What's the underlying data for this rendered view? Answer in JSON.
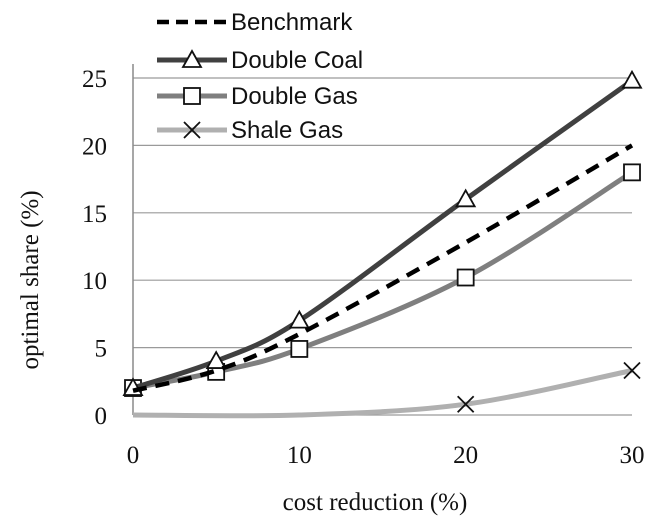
{
  "chart_data": {
    "type": "line",
    "title": "",
    "xlabel": "cost reduction (%)",
    "ylabel": "optimal share (%)",
    "xlim": [
      0,
      30
    ],
    "ylim": [
      0,
      25
    ],
    "xticks": [
      0,
      10,
      20,
      30
    ],
    "yticks": [
      0,
      5,
      10,
      15,
      20,
      25
    ],
    "grid": "horizontal",
    "legend_position": "top-left",
    "series": [
      {
        "name": "Benchmark",
        "color": "#000000",
        "style": "dashed",
        "marker": "none",
        "x": [
          0,
          5,
          10,
          20,
          30
        ],
        "y": [
          1.8,
          3.3,
          6.0,
          12.8,
          20.0
        ]
      },
      {
        "name": "Double Coal",
        "color": "#404040",
        "style": "solid",
        "marker": "triangle",
        "x": [
          0,
          5,
          10,
          20,
          30
        ],
        "y": [
          2.0,
          4.0,
          7.0,
          16.0,
          24.8
        ]
      },
      {
        "name": "Double Gas",
        "color": "#7f7f7f",
        "style": "solid",
        "marker": "square",
        "x": [
          0,
          5,
          10,
          20,
          30
        ],
        "y": [
          2.0,
          3.2,
          4.9,
          10.2,
          18.0
        ]
      },
      {
        "name": "Shale Gas",
        "color": "#b0b0b0",
        "style": "solid",
        "marker": "x",
        "x": [
          0,
          10,
          20,
          30
        ],
        "y": [
          0.0,
          0.0,
          0.8,
          3.3
        ],
        "marker_x": [
          20,
          30
        ]
      }
    ]
  }
}
